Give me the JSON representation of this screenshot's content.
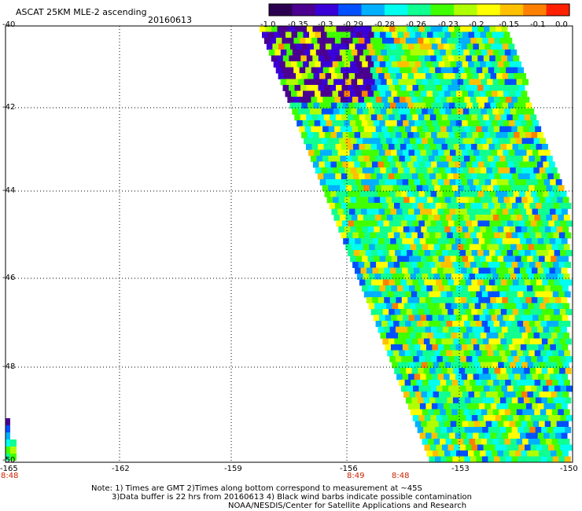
{
  "header": {
    "title": "ASCAT 25KM MLE-2 ascending",
    "date": "20160613"
  },
  "colorbar": {
    "labels": [
      "-1.0",
      "-0.35",
      "-0.3",
      "-0.29",
      "-0.28",
      "-0.26",
      "-0.23",
      "-0.2",
      "-0.15",
      "-0.1",
      "0.0"
    ],
    "colors": [
      "#2b0050",
      "#4b0090",
      "#3a00d8",
      "#0050ff",
      "#00b0ff",
      "#00ffee",
      "#10ff90",
      "#40ff00",
      "#b0ff00",
      "#ffff00",
      "#ffc000",
      "#ff8000",
      "#ff2000"
    ]
  },
  "axes": {
    "lat_labels": [
      "-40",
      "-42",
      "-44",
      "-46",
      "-48",
      "-50"
    ],
    "lon_labels": [
      "-165",
      "-162",
      "-159",
      "-156",
      "-153",
      "-150"
    ]
  },
  "times": [
    "8:48",
    "8:49",
    "8:48"
  ],
  "notes": [
    "Note: 1) Times are GMT 2)Times along bottom correspond to measurement at ~45S",
    "3)Data buffer is 22 hrs from 20160613 4) Black wind barbs indicate possible contamination",
    "NOAA/NESDIS/Center for Satellite Applications and Research"
  ]
}
